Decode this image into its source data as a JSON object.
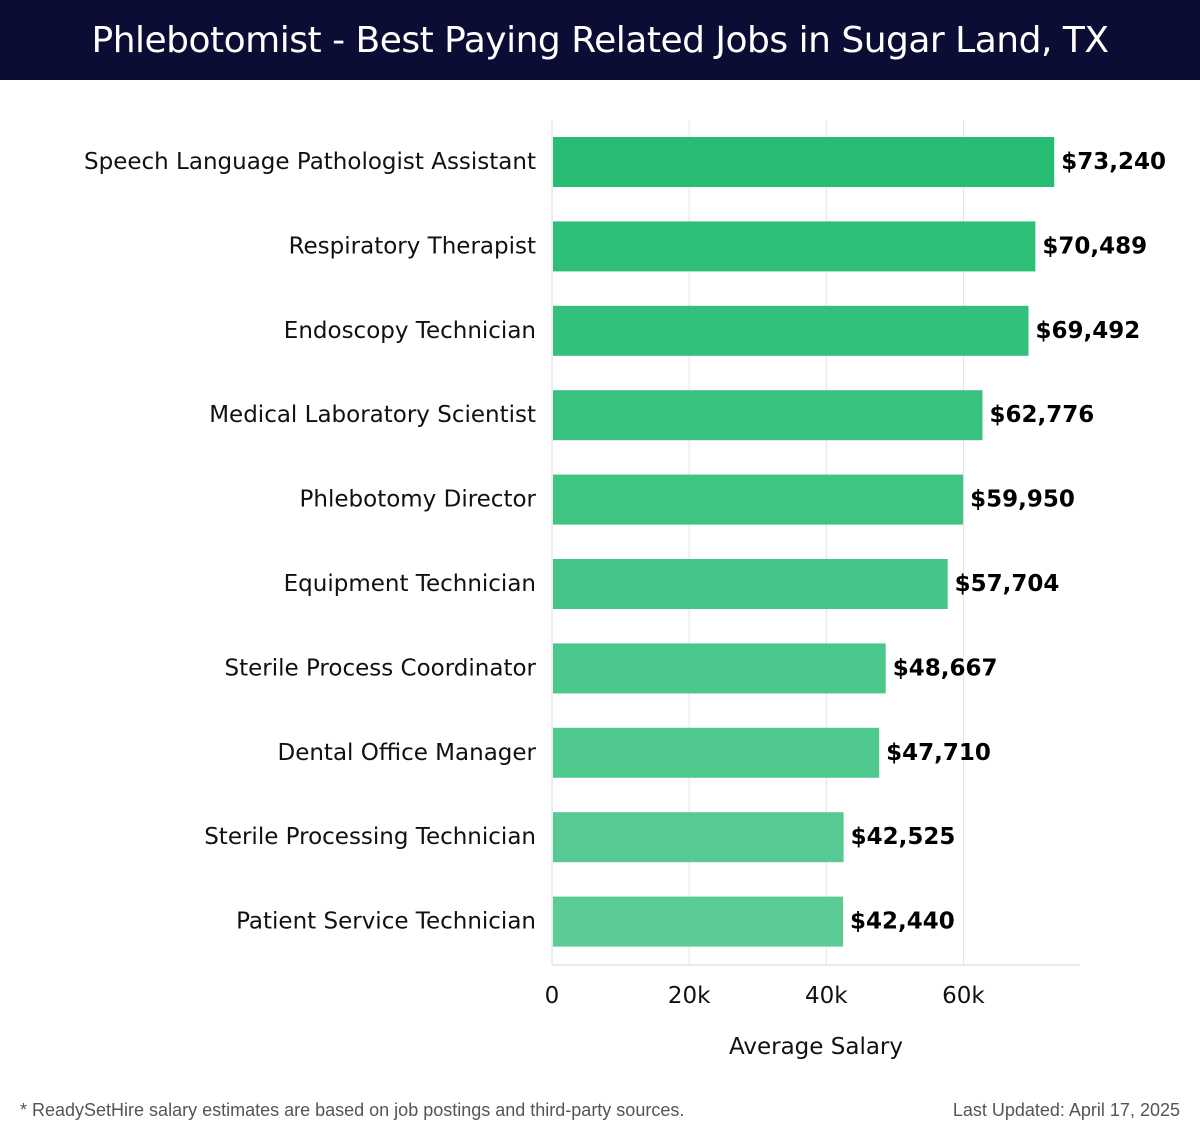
{
  "header": {
    "title": "Phlebotomist - Best Paying Related Jobs in Sugar Land, TX"
  },
  "chart_data": {
    "type": "bar",
    "orientation": "horizontal",
    "categories": [
      "Speech Language Pathologist Assistant",
      "Respiratory Therapist",
      "Endoscopy Technician",
      "Medical Laboratory Scientist",
      "Phlebotomy Director",
      "Equipment Technician",
      "Sterile Process Coordinator",
      "Dental Office Manager",
      "Sterile Processing Technician",
      "Patient Service Technician"
    ],
    "values": [
      73240,
      70489,
      69492,
      62776,
      59950,
      57704,
      48667,
      47710,
      42525,
      42440
    ],
    "value_labels": [
      "$73,240",
      "$70,489",
      "$69,492",
      "$62,776",
      "$59,950",
      "$57,704",
      "$48,667",
      "$47,710",
      "$42,525",
      "$42,440"
    ],
    "xlabel": "Average Salary",
    "ylabel": "",
    "xlim": [
      0,
      77000
    ],
    "ticks": [
      0,
      20000,
      40000,
      60000
    ],
    "tick_labels": [
      "0",
      "20k",
      "40k",
      "60k"
    ],
    "grid": true,
    "bar_color_top": "#27bd74",
    "bar_color_bottom": "#5ccc96"
  },
  "footer": {
    "note": "* ReadySetHire salary estimates are based on job postings and third-party sources.",
    "updated": "Last Updated: April 17, 2025"
  }
}
